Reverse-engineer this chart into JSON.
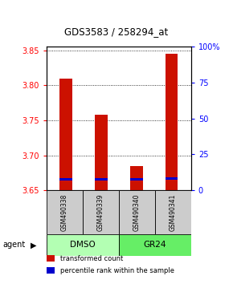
{
  "title": "GDS3583 / 258294_at",
  "samples": [
    "GSM490338",
    "GSM490339",
    "GSM490340",
    "GSM490341"
  ],
  "red_values": [
    3.81,
    3.758,
    3.685,
    3.845
  ],
  "blue_values": [
    3.666,
    3.666,
    3.666,
    3.667
  ],
  "baseline": 3.65,
  "ylim_left": [
    3.65,
    3.855
  ],
  "ylim_right": [
    0,
    100
  ],
  "yticks_left": [
    3.65,
    3.7,
    3.75,
    3.8,
    3.85
  ],
  "yticks_right": [
    0,
    25,
    50,
    75,
    100
  ],
  "yticklabels_right": [
    "0",
    "25",
    "50",
    "75",
    "100%"
  ],
  "agent_groups": [
    {
      "label": "DMSO",
      "samples": [
        0,
        1
      ],
      "color": "#b3ffb3"
    },
    {
      "label": "GR24",
      "samples": [
        2,
        3
      ],
      "color": "#66ee66"
    }
  ],
  "bar_width": 0.35,
  "blue_bar_height": 0.003,
  "red_color": "#cc1100",
  "blue_color": "#0000cc",
  "sample_box_color": "#cccccc",
  "legend_items": [
    {
      "color": "#cc1100",
      "label": "transformed count"
    },
    {
      "color": "#0000cc",
      "label": "percentile rank within the sample"
    }
  ],
  "agent_label": "agent",
  "background_color": "#ffffff"
}
